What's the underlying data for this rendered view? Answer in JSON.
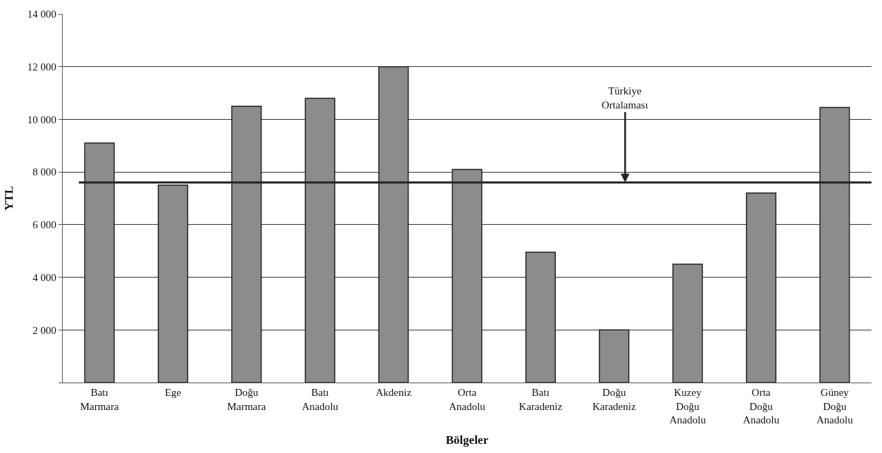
{
  "chart_data": {
    "type": "bar",
    "xlabel": "Bölgeler",
    "ylabel": "YTL",
    "categories": [
      "Batı\nMarmara",
      "Ege",
      "Doğu\nMarmara",
      "Batı\nAnadolu",
      "Akdeniz",
      "Orta\nAnadolu",
      "Batı\nKaradeniz",
      "Doğu\nKaradeniz",
      "Kuzey\nDoğu\nAnadolu",
      "Orta\nDoğu\nAnadolu",
      "Güney\nDoğu\nAnadolu"
    ],
    "values": [
      9100,
      7500,
      10500,
      10800,
      12000,
      8100,
      4950,
      2000,
      4500,
      7200,
      10450
    ],
    "color": "#8c8c8c",
    "ylim": [
      0,
      14000
    ],
    "yticks": [
      {
        "value": 0,
        "label": null
      },
      {
        "value": 2000,
        "label": "2 000"
      },
      {
        "value": 4000,
        "label": "4 000"
      },
      {
        "value": 6000,
        "label": "6 000"
      },
      {
        "value": 8000,
        "label": "8 000"
      },
      {
        "value": 10000,
        "label": "10 000"
      },
      {
        "value": 12000,
        "label": "12 000"
      },
      {
        "value": 14000,
        "label": "14 000"
      }
    ],
    "grid": "y",
    "ref_lines": [
      {
        "axis": "y",
        "value": 7600,
        "label": "Türkiye\nOrtalaması",
        "color": "#222222",
        "line_style": "solid"
      }
    ]
  }
}
